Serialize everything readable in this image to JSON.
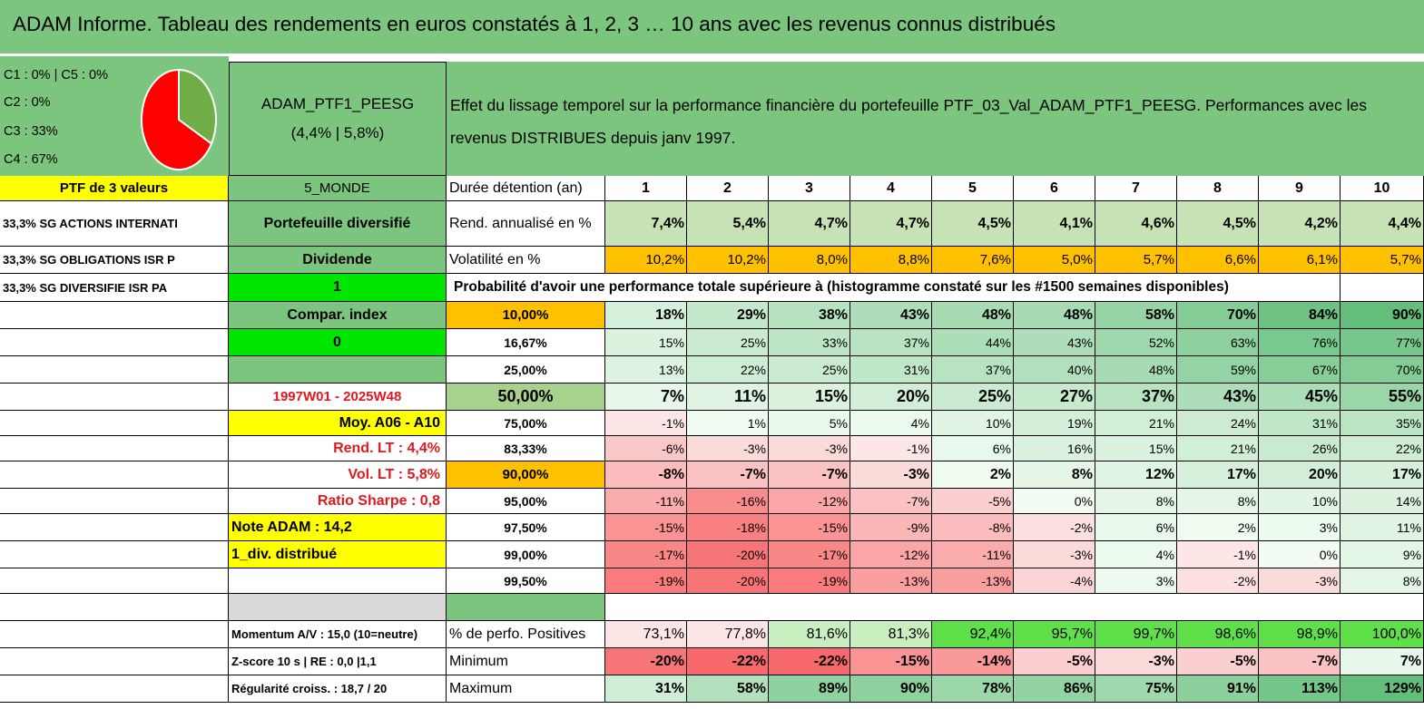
{
  "title": "ADAM Informe. Tableau des rendements en euros constatés à 1, 2, 3 … 10 ans avec les revenus connus distribués",
  "allocation": [
    "C1 : 0% | C5 : 0%",
    "C2 : 0%",
    "C3 : 33%",
    "C4 : 67%"
  ],
  "pie": [
    {
      "label": "C3",
      "value": 33,
      "color": "#6fad46"
    },
    {
      "label": "C4",
      "value": 67,
      "color": "#ff0000"
    }
  ],
  "ptf_name": "ADAM_PTF1_PEESG",
  "ptf_perf": "(4,4% | 5,8%)",
  "description": "Effet du lissage temporel sur la performance financière du portefeuille PTF_03_Val_ADAM_PTF1_PEESG. Performances avec les revenus DISTRIBUES depuis janv 1997.",
  "left_col": {
    "ptf_count": "PTF de 3 valeurs",
    "holdings": [
      "33,3% SG ACTIONS INTERNATI",
      "33,3% SG OBLIGATIONS ISR P",
      "33,3% SG DIVERSIFIE ISR PA"
    ],
    "note": "Note ADAM : 14,2",
    "div": "1_div. distribué"
  },
  "mid_col": {
    "zone": "5_MONDE",
    "type": "Portefeuille diversifié",
    "dividende": "Dividende",
    "one": "1",
    "compar": "Compar. index",
    "zero": "0",
    "period": "1997W01 - 2025W48",
    "moy": "Moy. A06 - A10",
    "rend_lt": "Rend. LT : 4,4%",
    "vol_lt": "Vol. LT : 5,8%",
    "sharpe": "Ratio Sharpe : 0,8",
    "momentum": "Momentum A/V : 15,0 (10=neutre)",
    "zscore": "Z-score 10 s | RE : 0,0 |1,1",
    "regularite": "Régularité croiss. : 18,7 / 20"
  },
  "table": {
    "duration_label": "Durée détention (an)",
    "years": [
      "1",
      "2",
      "3",
      "4",
      "5",
      "6",
      "7",
      "8",
      "9",
      "10"
    ],
    "rend_label": "Rend. annualisé en %",
    "rend": [
      "7,4%",
      "5,4%",
      "4,7%",
      "4,7%",
      "4,5%",
      "4,1%",
      "4,6%",
      "4,5%",
      "4,2%",
      "4,4%"
    ],
    "vol_label": "Volatilité en %",
    "vol": [
      "10,2%",
      "10,2%",
      "8,0%",
      "8,8%",
      "7,6%",
      "5,0%",
      "5,7%",
      "6,6%",
      "6,1%",
      "5,7%"
    ],
    "prob_label": "Probabilité d'avoir une performance totale supérieure à (histogramme constaté sur les #1500 semaines disponibles)",
    "prob_rows": [
      {
        "threshold": "10,00%",
        "values": [
          "18%",
          "29%",
          "38%",
          "43%",
          "48%",
          "48%",
          "58%",
          "70%",
          "84%",
          "90%"
        ]
      },
      {
        "threshold": "16,67%",
        "values": [
          "15%",
          "25%",
          "33%",
          "37%",
          "44%",
          "43%",
          "52%",
          "63%",
          "76%",
          "77%"
        ]
      },
      {
        "threshold": "25,00%",
        "values": [
          "13%",
          "22%",
          "25%",
          "31%",
          "37%",
          "40%",
          "48%",
          "59%",
          "67%",
          "70%"
        ]
      },
      {
        "threshold": "50,00%",
        "values": [
          "7%",
          "11%",
          "15%",
          "20%",
          "25%",
          "27%",
          "37%",
          "43%",
          "45%",
          "55%"
        ]
      },
      {
        "threshold": "75,00%",
        "values": [
          "-1%",
          "1%",
          "5%",
          "4%",
          "10%",
          "19%",
          "21%",
          "24%",
          "31%",
          "35%"
        ]
      },
      {
        "threshold": "83,33%",
        "values": [
          "-6%",
          "-3%",
          "-3%",
          "-1%",
          "6%",
          "16%",
          "15%",
          "21%",
          "26%",
          "22%"
        ]
      },
      {
        "threshold": "90,00%",
        "values": [
          "-8%",
          "-7%",
          "-7%",
          "-3%",
          "2%",
          "8%",
          "12%",
          "17%",
          "20%",
          "17%"
        ]
      },
      {
        "threshold": "95,00%",
        "values": [
          "-11%",
          "-16%",
          "-12%",
          "-7%",
          "-5%",
          "0%",
          "8%",
          "8%",
          "10%",
          "14%"
        ]
      },
      {
        "threshold": "97,50%",
        "values": [
          "-15%",
          "-18%",
          "-15%",
          "-9%",
          "-8%",
          "-2%",
          "6%",
          "2%",
          "3%",
          "11%"
        ]
      },
      {
        "threshold": "99,00%",
        "values": [
          "-17%",
          "-20%",
          "-17%",
          "-12%",
          "-11%",
          "-3%",
          "4%",
          "-1%",
          "0%",
          "9%"
        ]
      },
      {
        "threshold": "99,50%",
        "values": [
          "-19%",
          "-20%",
          "-19%",
          "-13%",
          "-13%",
          "-4%",
          "3%",
          "-2%",
          "-3%",
          "8%"
        ]
      }
    ],
    "pos_label": "% de perfo. Positives",
    "pos": [
      "73,1%",
      "77,8%",
      "81,6%",
      "81,3%",
      "92,4%",
      "95,7%",
      "99,7%",
      "98,6%",
      "98,9%",
      "100,0%"
    ],
    "min_label": "Minimum",
    "min": [
      "-20%",
      "-22%",
      "-22%",
      "-15%",
      "-14%",
      "-5%",
      "-3%",
      "-5%",
      "-7%",
      "7%"
    ],
    "max_label": "Maximum",
    "max": [
      "31%",
      "58%",
      "89%",
      "90%",
      "78%",
      "86%",
      "75%",
      "91%",
      "113%",
      "129%"
    ]
  },
  "colors": {
    "header_green": "#7cc57e",
    "yellow": "#ffff00",
    "bright_green": "#00e600",
    "orange": "#ffc000",
    "red_text": "#e0191f"
  }
}
